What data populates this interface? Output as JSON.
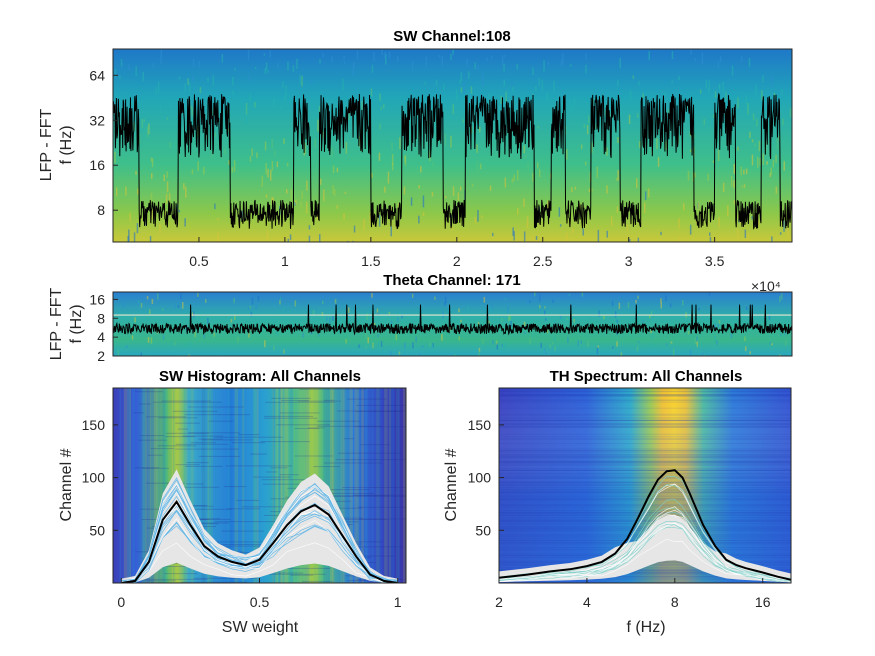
{
  "chart_data": [
    {
      "id": "sw_spectrogram",
      "type": "heatmap",
      "title": "SW Channel:108",
      "ylabel_lines": [
        "LFP - FFT",
        "f (Hz)"
      ],
      "xlabel": "",
      "x_exponent_label": "×10⁴",
      "xlim": [
        0,
        3.95
      ],
      "ylim": [
        4.9,
        96
      ],
      "yscale": "log2",
      "xticks": [
        0.5,
        1,
        1.5,
        2,
        2.5,
        3,
        3.5
      ],
      "xtick_labels": [
        "0.5",
        "1",
        "1.5",
        "2",
        "2.5",
        "3",
        "3.5"
      ],
      "yticks": [
        8,
        16,
        32,
        64
      ],
      "ytick_labels": [
        "8",
        "16",
        "32",
        "64"
      ],
      "colormap": "parula",
      "overlay_color": "#000000",
      "overlay_description": "slow-wave trace switching between high and low frequency states",
      "overlay_states": [
        {
          "start": 0.0,
          "end": 0.15,
          "level": "high"
        },
        {
          "start": 0.15,
          "end": 0.38,
          "level": "low"
        },
        {
          "start": 0.38,
          "end": 0.68,
          "level": "high"
        },
        {
          "start": 0.68,
          "end": 1.05,
          "level": "low"
        },
        {
          "start": 1.05,
          "end": 1.15,
          "level": "high"
        },
        {
          "start": 1.15,
          "end": 1.2,
          "level": "low"
        },
        {
          "start": 1.2,
          "end": 1.5,
          "level": "high"
        },
        {
          "start": 1.5,
          "end": 1.68,
          "level": "low"
        },
        {
          "start": 1.68,
          "end": 1.92,
          "level": "high"
        },
        {
          "start": 1.92,
          "end": 2.05,
          "level": "low"
        },
        {
          "start": 2.05,
          "end": 2.45,
          "level": "high"
        },
        {
          "start": 2.45,
          "end": 2.55,
          "level": "low"
        },
        {
          "start": 2.55,
          "end": 2.63,
          "level": "high"
        },
        {
          "start": 2.63,
          "end": 2.78,
          "level": "low"
        },
        {
          "start": 2.78,
          "end": 2.95,
          "level": "high"
        },
        {
          "start": 2.95,
          "end": 3.07,
          "level": "low"
        },
        {
          "start": 3.07,
          "end": 3.38,
          "level": "high"
        },
        {
          "start": 3.38,
          "end": 3.5,
          "level": "low"
        },
        {
          "start": 3.5,
          "end": 3.62,
          "level": "high"
        },
        {
          "start": 3.62,
          "end": 3.77,
          "level": "low"
        },
        {
          "start": 3.77,
          "end": 3.88,
          "level": "high"
        },
        {
          "start": 3.88,
          "end": 3.95,
          "level": "low"
        }
      ],
      "levels_hz": {
        "high": 32,
        "low": 7.5
      }
    },
    {
      "id": "theta_spectrogram",
      "type": "heatmap",
      "title": "Theta Channel: 171",
      "ylabel_lines": [
        "LFP - FFT",
        "f (Hz)"
      ],
      "xlim": [
        0,
        3.95
      ],
      "ylim": [
        2,
        21
      ],
      "yscale": "log2",
      "yticks": [
        2,
        4,
        8,
        16
      ],
      "ytick_labels": [
        "2",
        "4",
        "8",
        "16"
      ],
      "colormap": "parula",
      "overlay_color": "#000000",
      "overlay_level_hz": 5.5,
      "threshold_line_hz": 9,
      "threshold_line_color": "#e8e8d0"
    },
    {
      "id": "sw_histogram",
      "type": "heatmap",
      "title": "SW Histogram: All Channels",
      "xlabel": "SW weight",
      "ylabel": "Channel #",
      "xlim": [
        -0.03,
        1.03
      ],
      "ylim": [
        0,
        185
      ],
      "xticks": [
        0,
        0.5,
        1
      ],
      "xtick_labels": [
        "0",
        "0.5",
        "1"
      ],
      "yticks": [
        50,
        100,
        150
      ],
      "ytick_labels": [
        "50",
        "100",
        "150"
      ],
      "colormap": "parula",
      "mean_curve": {
        "x": [
          0.0,
          0.05,
          0.1,
          0.15,
          0.2,
          0.25,
          0.3,
          0.35,
          0.4,
          0.45,
          0.5,
          0.55,
          0.6,
          0.65,
          0.7,
          0.75,
          0.8,
          0.85,
          0.9,
          0.95,
          1.0
        ],
        "y": [
          0,
          2,
          20,
          60,
          77,
          55,
          35,
          25,
          20,
          17,
          22,
          38,
          55,
          68,
          74,
          65,
          45,
          25,
          8,
          2,
          0
        ]
      },
      "mean_curve_color": "#000000",
      "envelope_color": "#e6e6e6",
      "channel_curves_color": "#5ab4e6"
    },
    {
      "id": "th_spectrum",
      "type": "heatmap",
      "title": "TH Spectrum: All Channels",
      "xlabel": "f (Hz)",
      "ylabel": "Channel #",
      "xscale": "log2",
      "xlim": [
        2,
        20
      ],
      "ylim": [
        0,
        185
      ],
      "xticks": [
        2,
        4,
        8,
        16
      ],
      "xtick_labels": [
        "2",
        "4",
        "8",
        "16"
      ],
      "yticks": [
        50,
        100,
        150
      ],
      "ytick_labels": [
        "50",
        "100",
        "150"
      ],
      "colormap": "parula",
      "peak_frequency_hz": 7.8,
      "mean_curve": {
        "x": [
          2,
          2.5,
          3,
          3.5,
          4,
          4.5,
          5,
          5.5,
          6,
          6.5,
          7,
          7.5,
          8,
          8.5,
          9,
          10,
          11,
          12,
          13,
          14,
          16,
          18,
          20
        ],
        "y": [
          5,
          8,
          11,
          13,
          16,
          20,
          28,
          42,
          62,
          82,
          98,
          106,
          107,
          100,
          85,
          55,
          35,
          22,
          17,
          14,
          10,
          6,
          3
        ]
      },
      "mean_curve_color": "#000000",
      "envelope_color": "#e6e6e6"
    }
  ]
}
